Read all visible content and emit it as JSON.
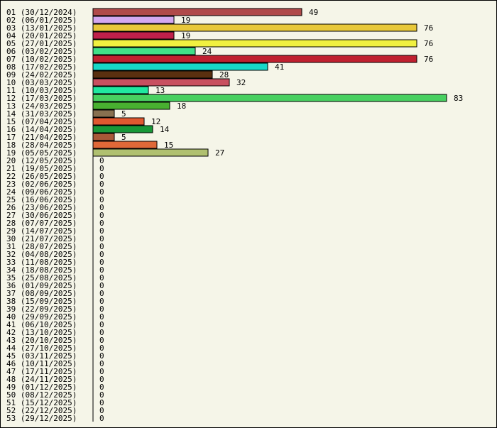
{
  "chart_data": {
    "type": "bar",
    "orientation": "horizontal",
    "title": "",
    "xlabel": "",
    "ylabel": "",
    "grid": false,
    "legend": "none",
    "categories": [
      "01 (30/12/2024)",
      "02 (06/01/2025)",
      "03 (13/01/2025)",
      "04 (20/01/2025)",
      "05 (27/01/2025)",
      "06 (03/02/2025)",
      "07 (10/02/2025)",
      "08 (17/02/2025)",
      "09 (24/02/2025)",
      "10 (03/03/2025)",
      "11 (10/03/2025)",
      "12 (17/03/2025)",
      "13 (24/03/2025)",
      "14 (31/03/2025)",
      "15 (07/04/2025)",
      "16 (14/04/2025)",
      "17 (21/04/2025)",
      "18 (28/04/2025)",
      "19 (05/05/2025)",
      "20 (12/05/2025)",
      "21 (19/05/2025)",
      "22 (26/05/2025)",
      "23 (02/06/2025)",
      "24 (09/06/2025)",
      "25 (16/06/2025)",
      "26 (23/06/2025)",
      "27 (30/06/2025)",
      "28 (07/07/2025)",
      "29 (14/07/2025)",
      "30 (21/07/2025)",
      "31 (28/07/2025)",
      "32 (04/08/2025)",
      "33 (11/08/2025)",
      "34 (18/08/2025)",
      "35 (25/08/2025)",
      "36 (01/09/2025)",
      "37 (08/09/2025)",
      "38 (15/09/2025)",
      "39 (22/09/2025)",
      "40 (29/09/2025)",
      "41 (06/10/2025)",
      "42 (13/10/2025)",
      "43 (20/10/2025)",
      "44 (27/10/2025)",
      "45 (03/11/2025)",
      "46 (10/11/2025)",
      "47 (17/11/2025)",
      "48 (24/11/2025)",
      "49 (01/12/2025)",
      "50 (08/12/2025)",
      "51 (15/12/2025)",
      "52 (22/12/2025)",
      "53 (29/12/2025)"
    ],
    "values": [
      49,
      19,
      76,
      19,
      76,
      24,
      76,
      41,
      28,
      32,
      13,
      83,
      18,
      5,
      12,
      14,
      5,
      15,
      27,
      0,
      0,
      0,
      0,
      0,
      0,
      0,
      0,
      0,
      0,
      0,
      0,
      0,
      0,
      0,
      0,
      0,
      0,
      0,
      0,
      0,
      0,
      0,
      0,
      0,
      0,
      0,
      0,
      0,
      0,
      0,
      0,
      0,
      0
    ],
    "colors": [
      "#b04a4a",
      "#d4a8f0",
      "#e8c83a",
      "#c0204a",
      "#f0f040",
      "#40e088",
      "#c02030",
      "#18d8c8",
      "#5a3010",
      "#c85060",
      "#20e8a0",
      "#48d060",
      "#48b030",
      "#887050",
      "#e05830",
      "#189838",
      "#a85838",
      "#e06838",
      "#b0c070"
    ],
    "xlim": [
      0,
      83
    ]
  }
}
